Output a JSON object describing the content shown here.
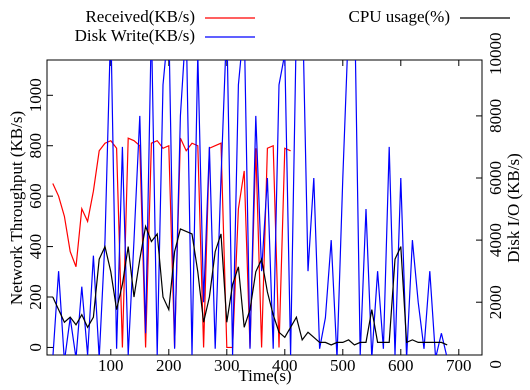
{
  "chart_data": {
    "type": "line",
    "xlabel": "Time(s)",
    "ylabel": "Network Throughput (KB/s)",
    "y2label": "Disk I/O (KB/s)",
    "xlim": [
      -10,
      740
    ],
    "xticks": [
      100,
      200,
      300,
      400,
      500,
      600,
      700
    ],
    "ylim": [
      -30,
      1140
    ],
    "yticks": [
      0,
      200,
      400,
      600,
      800,
      1000
    ],
    "y2lim": [
      300,
      9800
    ],
    "y2ticks": [
      0,
      2000,
      4000,
      6000,
      8000,
      10000
    ],
    "grid": false,
    "series": [
      {
        "name": "Received(KB/s)",
        "color": "#ff0000",
        "x": [
          0,
          10,
          20,
          30,
          40,
          50,
          60,
          70,
          80,
          90,
          100,
          110,
          120,
          130,
          140,
          150,
          160,
          170,
          180,
          190,
          200,
          210,
          220,
          230,
          240,
          250,
          260,
          270,
          280,
          290,
          300,
          310,
          320,
          330,
          340,
          350,
          360,
          370,
          380,
          390,
          400,
          410
        ],
        "values": [
          650,
          600,
          520,
          380,
          320,
          550,
          500,
          620,
          780,
          810,
          820,
          790,
          0,
          830,
          820,
          800,
          0,
          810,
          820,
          790,
          800,
          0,
          830,
          780,
          810,
          800,
          0,
          790,
          800,
          810,
          0,
          0,
          550,
          700,
          0,
          790,
          0,
          790,
          800,
          0,
          790,
          780
        ]
      },
      {
        "name": "Disk Write(KB/s)",
        "color": "#0000ff",
        "axis": "y2",
        "x": [
          0,
          10,
          20,
          30,
          40,
          50,
          60,
          70,
          80,
          90,
          100,
          110,
          120,
          130,
          140,
          150,
          160,
          170,
          180,
          190,
          200,
          210,
          220,
          230,
          240,
          250,
          260,
          270,
          280,
          290,
          300,
          310,
          320,
          330,
          340,
          350,
          360,
          370,
          380,
          390,
          400,
          410,
          420,
          430,
          440,
          450,
          460,
          470,
          480,
          490,
          500,
          510,
          520,
          530,
          540,
          550,
          560,
          570,
          580,
          590,
          600,
          610,
          620,
          630,
          640,
          650,
          660,
          670,
          680
        ],
        "values": [
          200,
          3000,
          100,
          1500,
          200,
          2500,
          300,
          3500,
          200,
          4000,
          11000,
          500,
          7000,
          300,
          4000,
          8000,
          1000,
          11000,
          300,
          9000,
          11000,
          500,
          8000,
          11000,
          300,
          10000,
          2000,
          7000,
          500,
          6000,
          11000,
          300,
          9000,
          11000,
          500,
          8000,
          3000,
          6000,
          500,
          9000,
          10000,
          300,
          11000,
          12000,
          3000,
          6000,
          500,
          1500,
          4000,
          200,
          6000,
          11000,
          12000,
          300,
          5000,
          200,
          3000,
          500,
          7000,
          300,
          6000,
          200,
          4000,
          2000,
          500,
          3000,
          200,
          1000,
          200
        ]
      },
      {
        "name": "CPU usage(%)",
        "color": "#000000",
        "x": [
          0,
          10,
          20,
          30,
          40,
          50,
          60,
          70,
          80,
          90,
          100,
          110,
          120,
          130,
          140,
          150,
          160,
          170,
          180,
          190,
          200,
          210,
          220,
          230,
          240,
          250,
          260,
          270,
          280,
          290,
          300,
          310,
          320,
          330,
          340,
          350,
          360,
          370,
          380,
          390,
          400,
          410,
          420,
          430,
          440,
          450,
          460,
          470,
          480,
          490,
          500,
          510,
          520,
          530,
          540,
          550,
          560,
          570,
          580,
          590,
          600,
          610,
          620,
          630,
          640,
          650,
          660,
          670,
          680
        ],
        "values": [
          200,
          150,
          100,
          120,
          90,
          130,
          80,
          120,
          350,
          400,
          300,
          150,
          250,
          400,
          200,
          350,
          480,
          420,
          450,
          200,
          150,
          380,
          470,
          460,
          450,
          300,
          100,
          200,
          380,
          450,
          100,
          250,
          320,
          80,
          150,
          300,
          350,
          220,
          130,
          60,
          40,
          80,
          120,
          30,
          60,
          40,
          20,
          20,
          10,
          20,
          20,
          30,
          10,
          20,
          20,
          150,
          20,
          20,
          20,
          350,
          400,
          20,
          30,
          20,
          20,
          20,
          20,
          20,
          10
        ]
      }
    ]
  }
}
